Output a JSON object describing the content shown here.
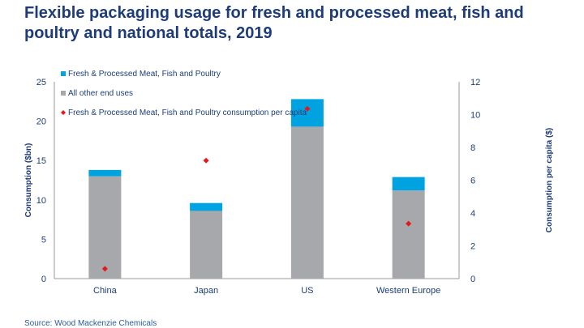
{
  "title": "Flexible packaging usage for fresh and processed meat, fish and poultry and national totals, 2019",
  "source": "Source: Wood Mackenzie Chemicals",
  "chart_data": {
    "type": "bar",
    "stacked": true,
    "categories": [
      "China",
      "Japan",
      "US",
      "Western Europe"
    ],
    "series": [
      {
        "name": "All other end uses",
        "values": [
          13.0,
          8.6,
          19.3,
          11.2
        ],
        "color": "#a6a8ab",
        "axis": "left"
      },
      {
        "name": "Fresh & Processed Meat, Fish and Poultry",
        "values": [
          0.8,
          1.0,
          3.5,
          1.7
        ],
        "color": "#00a3e0",
        "axis": "left"
      },
      {
        "name": "Fresh & Processed Meat, Fish and Poultry consumption per capita",
        "type": "scatter",
        "values": [
          0.6,
          7.2,
          10.35,
          3.35
        ],
        "color": "#e8161b",
        "axis": "right"
      }
    ],
    "legend_order": [
      "Fresh & Processed Meat, Fish and Poultry",
      "All other end uses",
      "Fresh & Processed Meat, Fish and Poultry consumption per capita"
    ],
    "ylabel": "Consumption ($bn)",
    "ylim": [
      0,
      25
    ],
    "yticks": [
      "0",
      "5",
      "10",
      "15",
      "20",
      "25"
    ],
    "y2label": "Consumption per capita ($)",
    "y2lim": [
      0,
      12
    ],
    "y2ticks": [
      "0",
      "2",
      "4",
      "6",
      "8",
      "10",
      "12"
    ],
    "legend_position": "top-left",
    "grid": false
  }
}
